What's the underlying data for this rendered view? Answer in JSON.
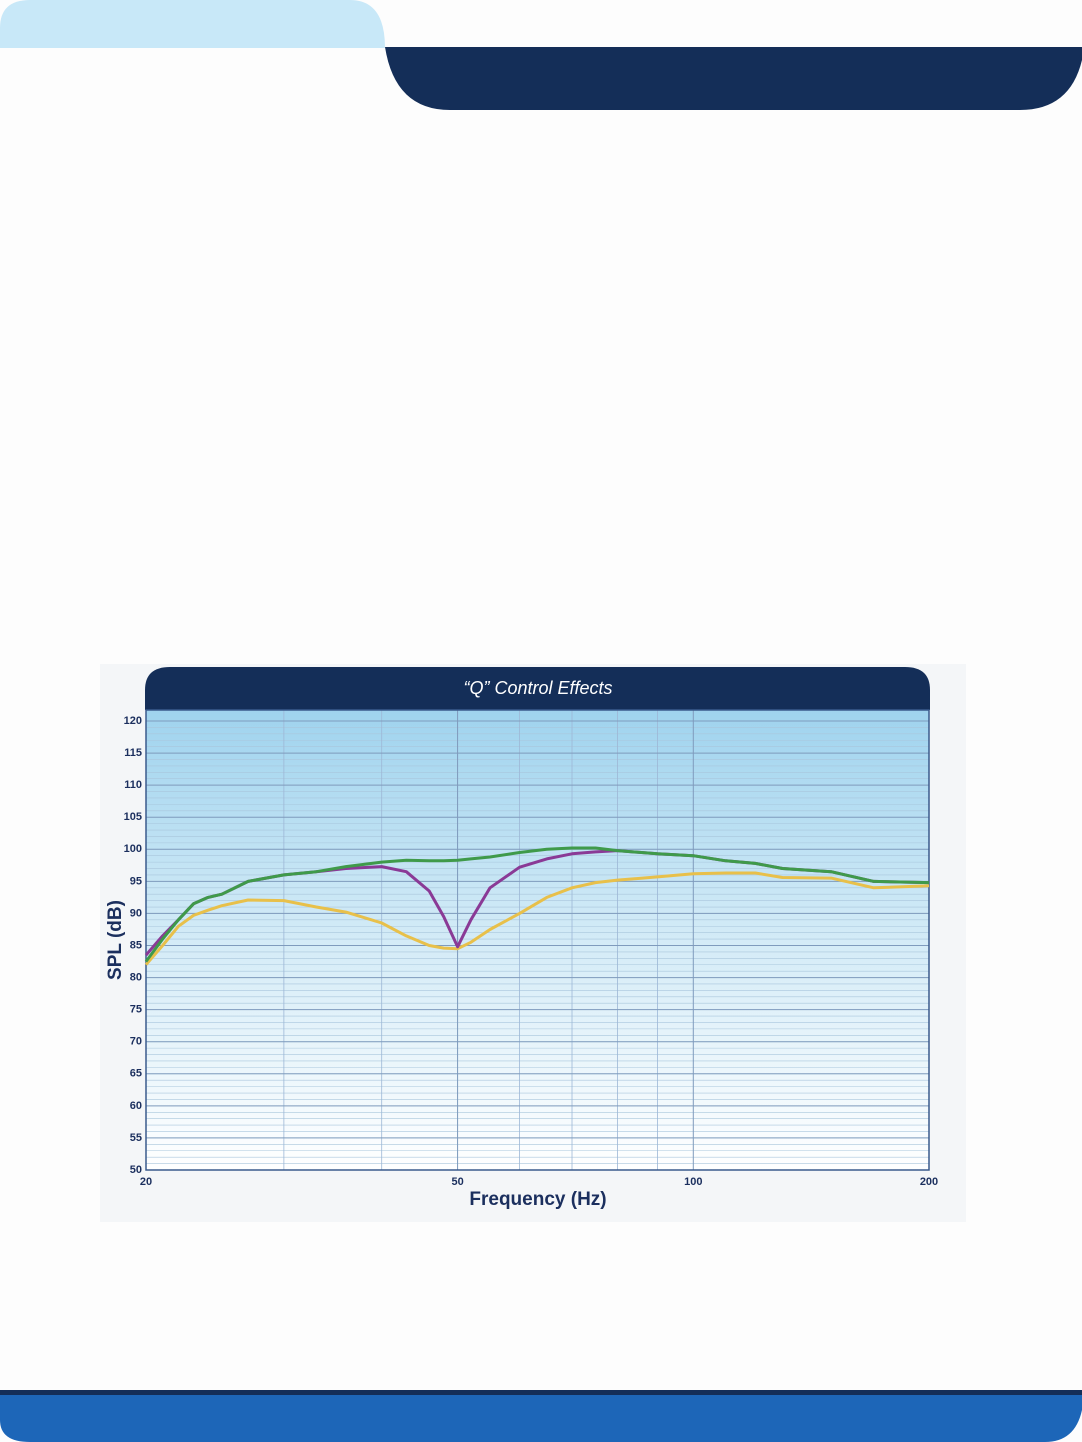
{
  "chart_data": {
    "type": "line",
    "title": "“Q” Control Effects",
    "x_label": "Frequency (Hz)",
    "y_label": "SPL (dB)",
    "x_scale": "log",
    "grid": true,
    "xlim": [
      20,
      200
    ],
    "xticks": [
      20,
      50,
      100,
      200
    ],
    "ylim": [
      50,
      120
    ],
    "yticks": [
      50,
      55,
      60,
      65,
      70,
      75,
      80,
      85,
      90,
      95,
      100,
      105,
      110,
      115,
      120
    ],
    "x": [
      20,
      21,
      22,
      23,
      24,
      25,
      27,
      30,
      33,
      36,
      40,
      43,
      46,
      48,
      50,
      52,
      55,
      60,
      65,
      70,
      75,
      80,
      90,
      100,
      110,
      120,
      130,
      150,
      170,
      200
    ],
    "series": [
      {
        "color": "#3f9a4a",
        "values": [
          82.5,
          86,
          89,
          91.5,
          92.5,
          93,
          95,
          96,
          96.5,
          97.3,
          98,
          98.3,
          98.2,
          98.2,
          98.3,
          98.5,
          98.8,
          99.5,
          100,
          100.2,
          100.2,
          99.8,
          99.3,
          99,
          98.2,
          97.8,
          97,
          96.5,
          95,
          94.8
        ]
      },
      {
        "color": "#8a3a96",
        "values": [
          83.5,
          86.5,
          89,
          91.5,
          92.5,
          93,
          95,
          96,
          96.5,
          97,
          97.3,
          96.5,
          93.5,
          89.5,
          84.8,
          89,
          94,
          97.2,
          98.5,
          99.3,
          99.6,
          99.8,
          99.3,
          99,
          98.2,
          97.8,
          97,
          96.5,
          95,
          94.8
        ]
      },
      {
        "color": "#e8c04a",
        "values": [
          82,
          85,
          88,
          89.7,
          90.5,
          91.2,
          92.1,
          92,
          91,
          90.2,
          88.5,
          86.5,
          85,
          84.6,
          84.5,
          85.5,
          87.5,
          90,
          92.5,
          94,
          94.8,
          95.2,
          95.7,
          96.2,
          96.3,
          96.3,
          95.6,
          95.5,
          94,
          94.3
        ]
      }
    ]
  }
}
